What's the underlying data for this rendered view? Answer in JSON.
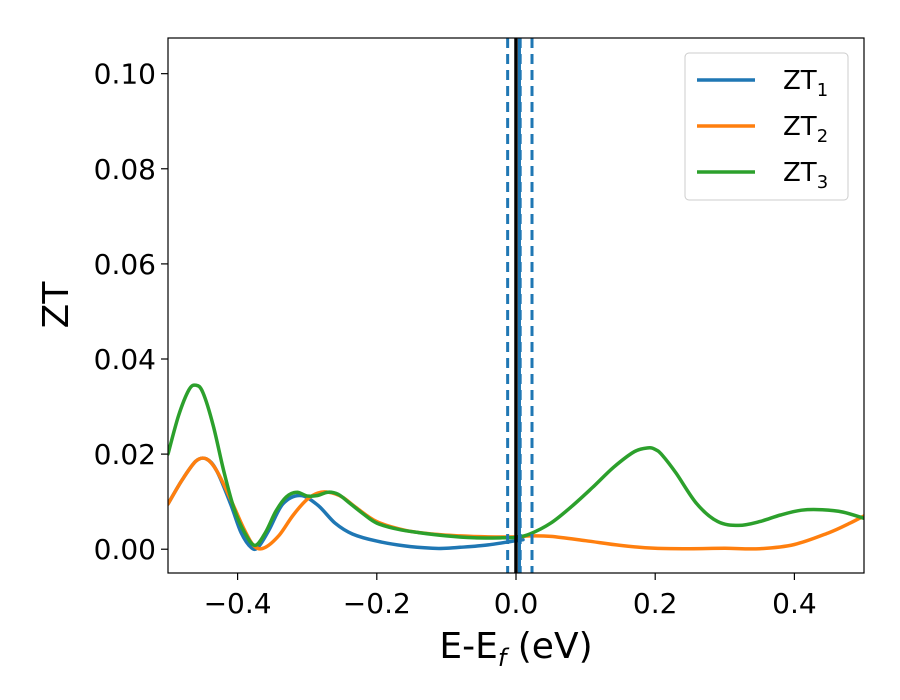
{
  "chart_data": {
    "type": "line",
    "xlabel": {
      "main": "E-E",
      "sub": "f",
      "suffix": " (eV)"
    },
    "ylabel": "ZT",
    "xlim": [
      -0.5,
      0.5
    ],
    "ylim": [
      -0.005,
      0.1075
    ],
    "x_ticks": [
      -0.4,
      -0.2,
      0.0,
      0.2,
      0.4
    ],
    "x_tick_labels": [
      "−0.4",
      "−0.2",
      "0.0",
      "0.2",
      "0.4"
    ],
    "y_ticks": [
      0.0,
      0.02,
      0.04,
      0.06,
      0.08,
      0.1
    ],
    "y_tick_labels": [
      "0.00",
      "0.02",
      "0.04",
      "0.06",
      "0.08",
      "0.10"
    ],
    "grid": false,
    "legend_position": "top-right",
    "series": [
      {
        "name": "ZT",
        "name_sub": "1",
        "color": "#1f77b4",
        "x": [
          -0.5,
          -0.48,
          -0.46,
          -0.445,
          -0.43,
          -0.41,
          -0.395,
          -0.38,
          -0.37,
          -0.355,
          -0.335,
          -0.31,
          -0.285,
          -0.26,
          -0.235,
          -0.2,
          -0.16,
          -0.12,
          -0.1,
          -0.08,
          -0.04,
          0.0,
          0.01
        ],
        "y": [
          0.0095,
          0.0145,
          0.0185,
          0.019,
          0.0165,
          0.0095,
          0.0035,
          0.0003,
          0.0005,
          0.004,
          0.0095,
          0.0113,
          0.0093,
          0.0055,
          0.0032,
          0.0017,
          0.0007,
          0.0002,
          0.0002,
          0.0004,
          0.0009,
          0.0018,
          0.002
        ]
      },
      {
        "name": "ZT",
        "name_sub": "2",
        "color": "#ff7f0e",
        "x": [
          -0.5,
          -0.48,
          -0.46,
          -0.445,
          -0.43,
          -0.41,
          -0.39,
          -0.375,
          -0.36,
          -0.34,
          -0.32,
          -0.3,
          -0.285,
          -0.27,
          -0.25,
          -0.23,
          -0.2,
          -0.16,
          -0.12,
          -0.08,
          -0.04,
          0.0,
          0.02,
          0.05,
          0.1,
          0.15,
          0.2,
          0.25,
          0.3,
          0.35,
          0.4,
          0.45,
          0.48,
          0.5
        ],
        "y": [
          0.0095,
          0.0145,
          0.0185,
          0.019,
          0.0165,
          0.0105,
          0.004,
          0.0005,
          0.0004,
          0.003,
          0.0072,
          0.0105,
          0.0118,
          0.012,
          0.011,
          0.0088,
          0.0058,
          0.004,
          0.0032,
          0.0028,
          0.0026,
          0.0026,
          0.0028,
          0.0027,
          0.0018,
          0.0008,
          0.0002,
          0.0001,
          0.0002,
          0.0001,
          0.001,
          0.0035,
          0.0055,
          0.007
        ]
      },
      {
        "name": "ZT",
        "name_sub": "3",
        "color": "#2ca02c",
        "x": [
          -0.5,
          -0.485,
          -0.47,
          -0.46,
          -0.45,
          -0.435,
          -0.42,
          -0.405,
          -0.39,
          -0.375,
          -0.36,
          -0.345,
          -0.33,
          -0.315,
          -0.3,
          -0.285,
          -0.27,
          -0.255,
          -0.24,
          -0.22,
          -0.2,
          -0.17,
          -0.14,
          -0.1,
          -0.06,
          -0.02,
          0.0,
          0.02,
          0.05,
          0.08,
          0.11,
          0.14,
          0.17,
          0.19,
          0.2,
          0.21,
          0.23,
          0.26,
          0.29,
          0.32,
          0.35,
          0.38,
          0.41,
          0.44,
          0.47,
          0.5
        ],
        "y": [
          0.02,
          0.028,
          0.0335,
          0.0345,
          0.033,
          0.026,
          0.0165,
          0.0085,
          0.0035,
          0.0008,
          0.0035,
          0.008,
          0.011,
          0.012,
          0.0112,
          0.0113,
          0.012,
          0.0115,
          0.0098,
          0.0075,
          0.0055,
          0.0042,
          0.0035,
          0.0028,
          0.0024,
          0.0024,
          0.0025,
          0.0032,
          0.0055,
          0.009,
          0.013,
          0.0172,
          0.0205,
          0.0213,
          0.021,
          0.0198,
          0.016,
          0.0095,
          0.0058,
          0.005,
          0.0058,
          0.0072,
          0.0082,
          0.0083,
          0.0078,
          0.0065
        ]
      }
    ],
    "vlines": [
      {
        "x": 0.0,
        "color": "#000000",
        "style": "solid"
      },
      {
        "x": 0.005,
        "color": "#1f77b4",
        "style": "solid"
      },
      {
        "x": -0.012,
        "color": "#1f77b4",
        "style": "dashed"
      },
      {
        "x": 0.006,
        "color": "#1f77b4",
        "style": "dashed"
      },
      {
        "x": 0.023,
        "color": "#1f77b4",
        "style": "dashed"
      }
    ]
  }
}
